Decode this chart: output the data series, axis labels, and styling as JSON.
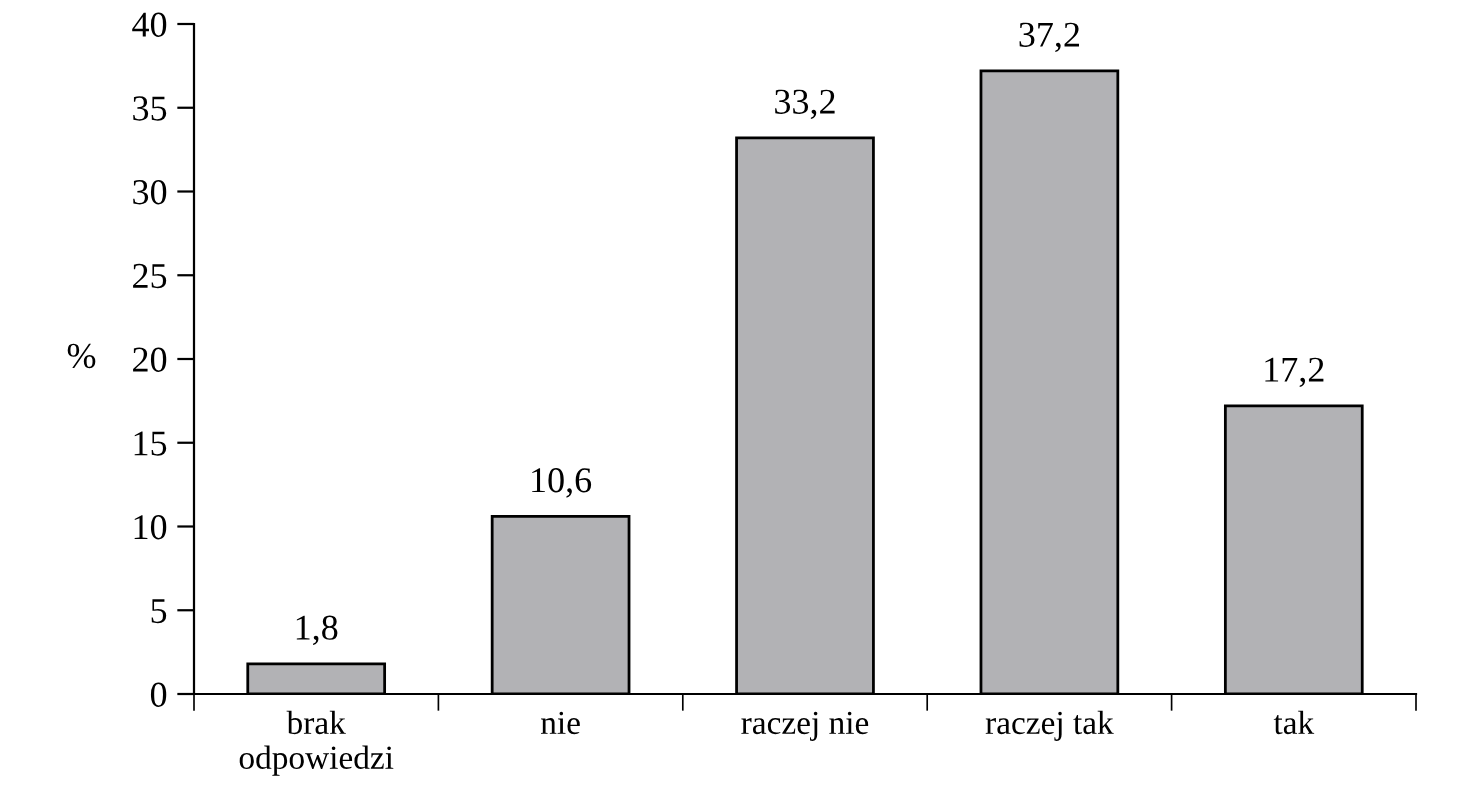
{
  "chart_data": {
    "type": "bar",
    "ylabel": "%",
    "categories": [
      "brak\nodpowiedzi",
      "nie",
      "raczej nie",
      "raczej tak",
      "tak"
    ],
    "values": [
      1.8,
      10.6,
      33.2,
      37.2,
      17.2
    ],
    "value_labels": [
      "1,8",
      "10,6",
      "33,2",
      "37,2",
      "17,2"
    ],
    "color": "#b2b2b5",
    "ylim": [
      0,
      40
    ],
    "yticks": [
      0,
      5,
      10,
      15,
      20,
      25,
      30,
      35,
      40
    ],
    "grid": false
  }
}
